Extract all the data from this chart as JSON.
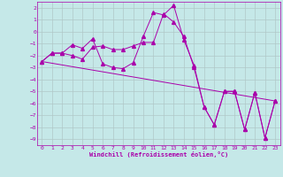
{
  "xlabel": "Windchill (Refroidissement éolien,°C)",
  "background_color": "#c5e8e8",
  "line_color": "#aa00aa",
  "grid_color": "#b0c8c8",
  "ylim": [
    -9.5,
    2.5
  ],
  "xlim": [
    -0.5,
    23.5
  ],
  "yticks": [
    2,
    1,
    0,
    -1,
    -2,
    -3,
    -4,
    -5,
    -6,
    -7,
    -8,
    -9
  ],
  "xticks": [
    0,
    1,
    2,
    3,
    4,
    5,
    6,
    7,
    8,
    9,
    10,
    11,
    12,
    13,
    14,
    15,
    16,
    17,
    18,
    19,
    20,
    21,
    22,
    23
  ],
  "series1_x": [
    0,
    1,
    2,
    3,
    4,
    5,
    6,
    7,
    8,
    9,
    10,
    11,
    12,
    13,
    14,
    15,
    16,
    17,
    18,
    19,
    20,
    21,
    22,
    23
  ],
  "series1_y": [
    -2.5,
    -1.8,
    -1.8,
    -1.1,
    -1.4,
    -0.6,
    -2.7,
    -3.0,
    -3.1,
    -2.6,
    -0.4,
    1.6,
    1.4,
    2.2,
    -0.7,
    -2.8,
    -6.3,
    -7.8,
    -5.0,
    -5.0,
    -8.2,
    -5.1,
    -8.9,
    -5.8
  ],
  "series2_x": [
    0,
    1,
    2,
    3,
    4,
    5,
    6,
    7,
    8,
    9,
    10,
    11,
    12,
    13,
    14,
    15,
    16,
    17,
    18,
    19,
    20,
    21,
    22,
    23
  ],
  "series2_y": [
    -2.5,
    -1.8,
    -1.8,
    -2.0,
    -2.3,
    -1.3,
    -1.2,
    -1.5,
    -1.5,
    -1.2,
    -0.9,
    -0.9,
    1.5,
    0.8,
    -0.4,
    -3.0,
    -6.3,
    -7.8,
    -5.0,
    -5.0,
    -8.2,
    -5.1,
    -8.9,
    -5.8
  ],
  "series3_x": [
    0,
    23
  ],
  "series3_y": [
    -2.5,
    -5.8
  ]
}
